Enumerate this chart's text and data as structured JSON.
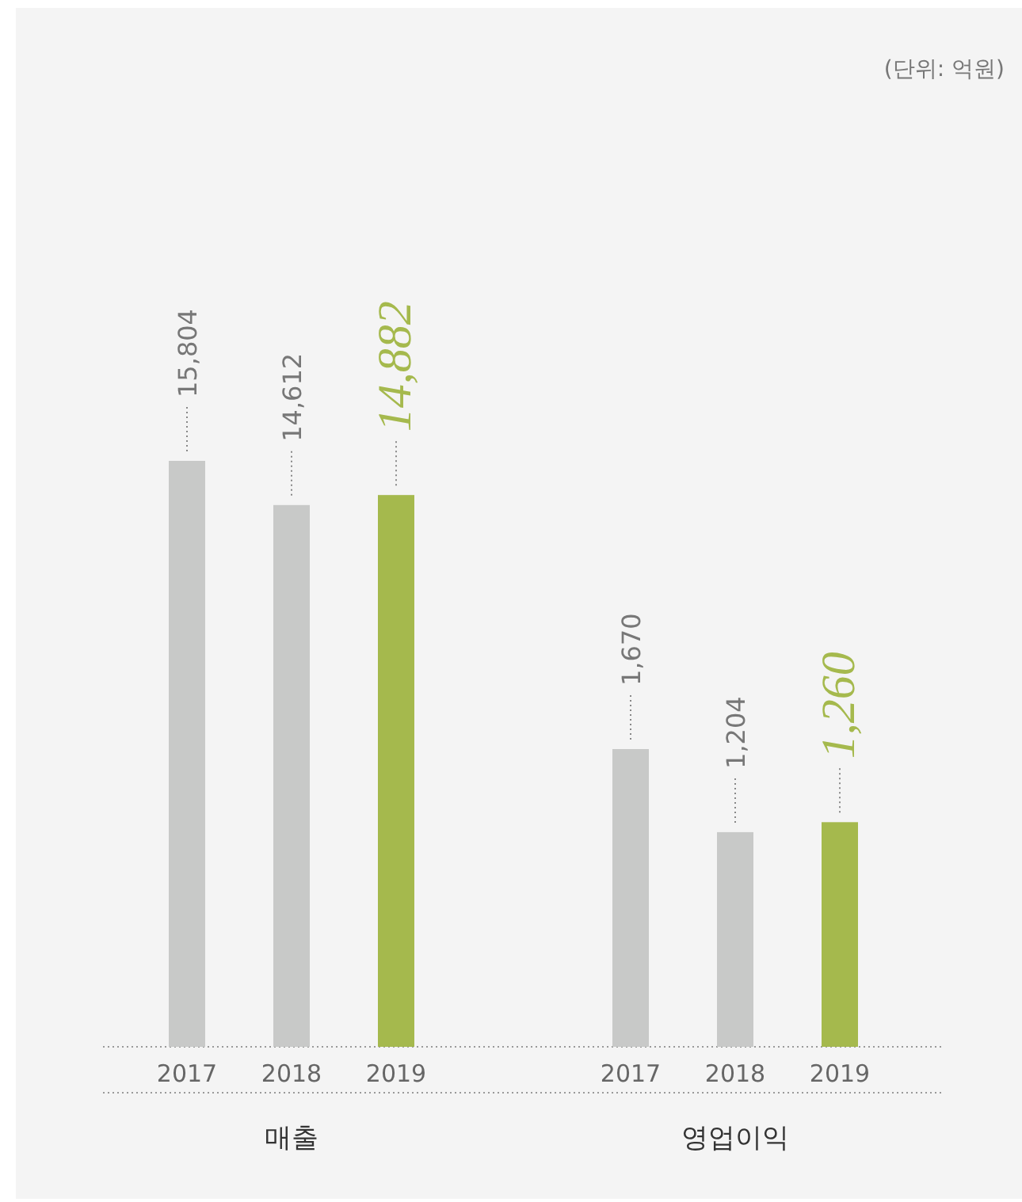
{
  "chart_data": [
    {
      "type": "bar",
      "xlabel": "매출",
      "categories": [
        "2017",
        "2018",
        "2019"
      ],
      "values": [
        15804,
        14612,
        14882
      ],
      "value_labels": [
        "15,804",
        "14,612",
        "14,882"
      ],
      "colors": [
        "#c8c9c8",
        "#c8c9c8",
        "#a5b94d"
      ],
      "annotations": [
        "(단위: 억원)"
      ]
    },
    {
      "type": "bar",
      "xlabel": "영업이익",
      "categories": [
        "2017",
        "2018",
        "2019"
      ],
      "values": [
        1670,
        1204,
        1260
      ],
      "value_labels": [
        "1,670",
        "1,204",
        "1,260"
      ],
      "colors": [
        "#c8c9c8",
        "#c8c9c8",
        "#a5b94d"
      ]
    }
  ]
}
